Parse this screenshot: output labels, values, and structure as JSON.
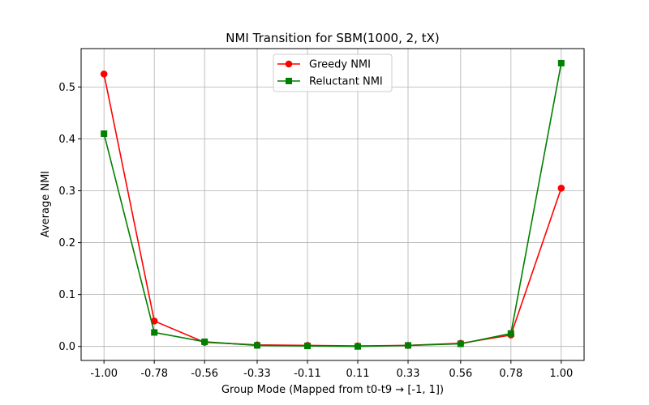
{
  "chart_data": {
    "type": "line",
    "title": "NMI Transition for SBM(1000, 2, tX)",
    "xlabel": "Group Mode (Mapped from t0-t9 → [-1, 1])",
    "ylabel": "Average NMI",
    "x": [
      -1.0,
      -0.78,
      -0.56,
      -0.33,
      -0.11,
      0.11,
      0.33,
      0.56,
      0.78,
      1.0
    ],
    "x_tick_labels": [
      "-1.00",
      "-0.78",
      "-0.56",
      "-0.33",
      "-0.11",
      "0.11",
      "0.33",
      "0.56",
      "0.78",
      "1.00"
    ],
    "y_ticks": [
      0.0,
      0.1,
      0.2,
      0.3,
      0.4,
      0.5
    ],
    "y_tick_labels": [
      "0.0",
      "0.1",
      "0.2",
      "0.3",
      "0.4",
      "0.5"
    ],
    "xlim": [
      -1.1,
      1.1
    ],
    "ylim": [
      -0.027,
      0.574
    ],
    "grid": true,
    "legend_position": "upper center",
    "series": [
      {
        "name": "Greedy NMI",
        "color": "#ff0000",
        "marker": "circle",
        "values": [
          0.525,
          0.049,
          0.008,
          0.003,
          0.002,
          0.001,
          0.002,
          0.006,
          0.022,
          0.305
        ]
      },
      {
        "name": "Reluctant NMI",
        "color": "#008000",
        "marker": "square",
        "values": [
          0.41,
          0.027,
          0.009,
          0.002,
          0.001,
          0.0,
          0.002,
          0.005,
          0.025,
          0.546
        ]
      }
    ]
  }
}
